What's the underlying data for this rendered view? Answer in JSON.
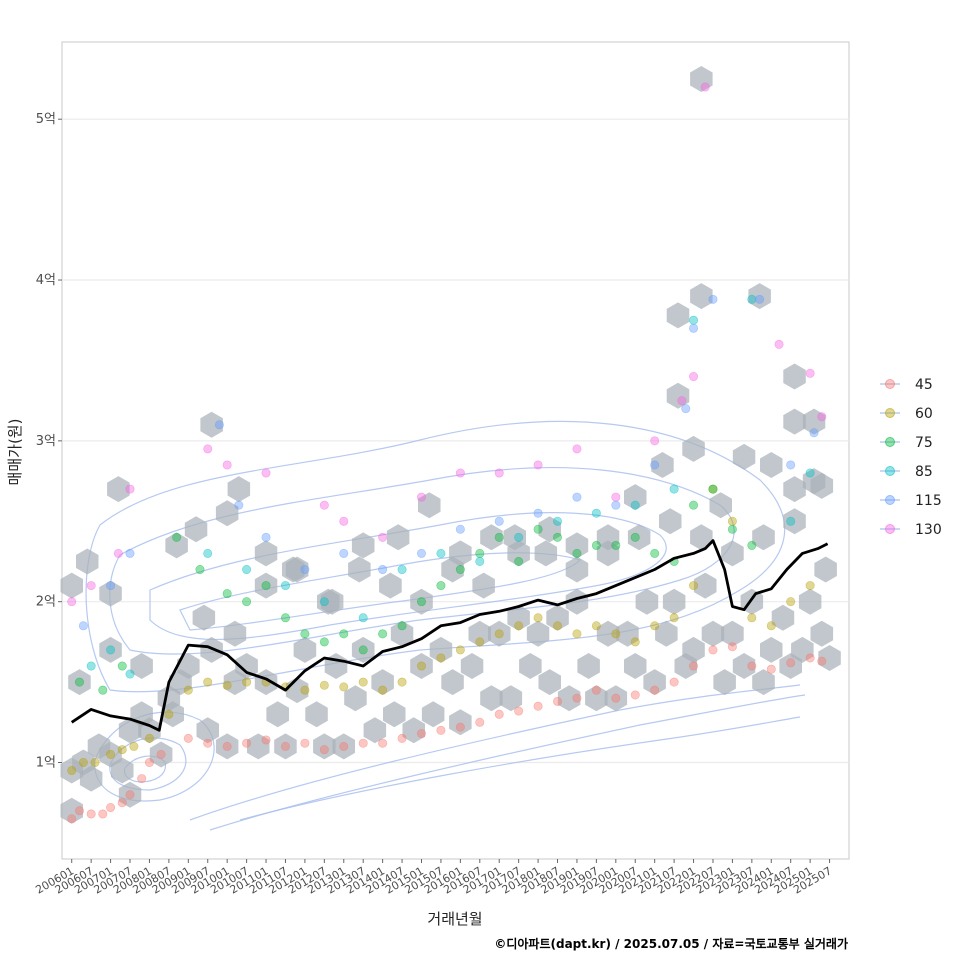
{
  "chart_data": {
    "type": "scatter",
    "xlabel": "거래년월",
    "ylabel": "매매가(원)",
    "caption": "©디아파트(dapt.kr) / 2025.07.05 / 자료=국토교통부 실거래가",
    "x_ticks": [
      "200601",
      "200607",
      "200701",
      "200707",
      "200801",
      "200807",
      "200901",
      "200907",
      "201001",
      "201007",
      "201101",
      "201107",
      "201201",
      "201207",
      "201301",
      "201307",
      "201401",
      "201407",
      "201501",
      "201507",
      "201601",
      "201607",
      "201701",
      "201707",
      "201801",
      "201807",
      "201901",
      "201907",
      "202001",
      "202007",
      "202101",
      "202107",
      "202201",
      "202207",
      "202301",
      "202307",
      "202401",
      "202407",
      "202501",
      "202507"
    ],
    "y_ticks": [
      {
        "value": 1,
        "label": "1억"
      },
      {
        "value": 2,
        "label": "2억"
      },
      {
        "value": 3,
        "label": "3억"
      },
      {
        "value": 4,
        "label": "4억"
      },
      {
        "value": 5,
        "label": "5억"
      }
    ],
    "xlim": [
      2005.75,
      2026.0
    ],
    "ylim": [
      0.4,
      5.48
    ],
    "grid": true,
    "legend_position": "right",
    "legend": [
      {
        "name": "45",
        "color": "#F8766D"
      },
      {
        "name": "60",
        "color": "#B79F00"
      },
      {
        "name": "75",
        "color": "#00BA38"
      },
      {
        "name": "85",
        "color": "#00BFC4"
      },
      {
        "name": "115",
        "color": "#619CFF"
      },
      {
        "name": "130",
        "color": "#F564E3"
      }
    ],
    "trend_line": {
      "color": "#000000",
      "x": [
        2006.0,
        2006.5,
        2007.0,
        2007.5,
        2008.0,
        2008.25,
        2008.5,
        2009.0,
        2009.5,
        2010.0,
        2010.5,
        2011.0,
        2011.5,
        2012.0,
        2012.5,
        2013.0,
        2013.5,
        2014.0,
        2014.5,
        2015.0,
        2015.5,
        2016.0,
        2016.5,
        2017.0,
        2017.5,
        2018.0,
        2018.5,
        2019.0,
        2019.5,
        2020.0,
        2020.5,
        2021.0,
        2021.5,
        2022.0,
        2022.3,
        2022.5,
        2022.8,
        2023.0,
        2023.3,
        2023.6,
        2024.0,
        2024.4,
        2024.8,
        2025.2,
        2025.45
      ],
      "y": [
        1.25,
        1.33,
        1.29,
        1.27,
        1.23,
        1.2,
        1.5,
        1.73,
        1.72,
        1.67,
        1.56,
        1.52,
        1.45,
        1.57,
        1.65,
        1.63,
        1.6,
        1.69,
        1.72,
        1.77,
        1.85,
        1.87,
        1.92,
        1.94,
        1.97,
        2.01,
        1.98,
        2.02,
        2.05,
        2.1,
        2.15,
        2.2,
        2.27,
        2.3,
        2.33,
        2.38,
        2.2,
        1.97,
        1.95,
        2.05,
        2.08,
        2.2,
        2.3,
        2.33,
        2.36
      ]
    },
    "series": [
      {
        "name": "45",
        "x": [
          2006.0,
          2006.2,
          2006.5,
          2006.8,
          2007.0,
          2007.3,
          2007.5,
          2007.8,
          2008.0,
          2008.3,
          2009.0,
          2009.5,
          2010.0,
          2010.5,
          2011.0,
          2011.5,
          2012.0,
          2012.5,
          2013.0,
          2013.5,
          2014.0,
          2014.5,
          2015.0,
          2015.5,
          2016.0,
          2016.5,
          2017.0,
          2017.5,
          2018.0,
          2018.5,
          2019.0,
          2019.5,
          2020.0,
          2020.5,
          2021.0,
          2021.5,
          2022.0,
          2022.5,
          2023.0,
          2023.5,
          2024.0,
          2024.5,
          2025.0,
          2025.3
        ],
        "y": [
          0.65,
          0.7,
          0.68,
          0.68,
          0.72,
          0.75,
          0.8,
          0.9,
          1.0,
          1.05,
          1.15,
          1.12,
          1.1,
          1.12,
          1.14,
          1.1,
          1.12,
          1.08,
          1.1,
          1.12,
          1.12,
          1.15,
          1.18,
          1.2,
          1.22,
          1.25,
          1.3,
          1.32,
          1.35,
          1.38,
          1.4,
          1.45,
          1.4,
          1.42,
          1.45,
          1.5,
          1.6,
          1.7,
          1.72,
          1.6,
          1.58,
          1.62,
          1.65,
          1.63
        ]
      },
      {
        "name": "60",
        "x": [
          2006.0,
          2006.3,
          2006.6,
          2007.0,
          2007.3,
          2007.6,
          2008.0,
          2008.5,
          2009.0,
          2009.5,
          2010.0,
          2010.5,
          2011.0,
          2011.5,
          2012.0,
          2012.5,
          2013.0,
          2013.5,
          2014.0,
          2014.5,
          2015.0,
          2015.5,
          2016.0,
          2016.5,
          2017.0,
          2017.5,
          2018.0,
          2018.5,
          2019.0,
          2019.5,
          2020.0,
          2020.5,
          2021.0,
          2021.5,
          2022.0,
          2022.5,
          2023.0,
          2023.5,
          2024.0,
          2024.5,
          2025.0
        ],
        "y": [
          0.95,
          1.0,
          1.0,
          1.05,
          1.08,
          1.1,
          1.15,
          1.3,
          1.45,
          1.5,
          1.48,
          1.5,
          1.5,
          1.47,
          1.45,
          1.48,
          1.47,
          1.5,
          1.45,
          1.5,
          1.6,
          1.65,
          1.7,
          1.75,
          1.8,
          1.85,
          1.9,
          1.85,
          1.8,
          1.85,
          1.8,
          1.75,
          1.85,
          1.9,
          2.1,
          2.7,
          2.5,
          1.9,
          1.85,
          2.0,
          2.1
        ]
      },
      {
        "name": "75",
        "x": [
          2006.2,
          2006.8,
          2007.3,
          2008.7,
          2009.3,
          2010.0,
          2010.5,
          2011.0,
          2011.5,
          2012.0,
          2012.5,
          2013.0,
          2013.5,
          2014.0,
          2014.5,
          2015.0,
          2015.5,
          2016.0,
          2016.5,
          2017.0,
          2017.5,
          2018.0,
          2018.5,
          2019.0,
          2019.5,
          2020.0,
          2020.5,
          2021.0,
          2021.5,
          2022.0,
          2022.5,
          2023.0,
          2023.5
        ],
        "y": [
          1.5,
          1.45,
          1.6,
          2.4,
          2.2,
          2.05,
          2.0,
          2.1,
          1.9,
          1.8,
          1.75,
          1.8,
          1.7,
          1.8,
          1.85,
          2.0,
          2.1,
          2.2,
          2.3,
          2.4,
          2.25,
          2.45,
          2.4,
          2.3,
          2.35,
          2.35,
          2.4,
          2.3,
          2.25,
          2.6,
          2.7,
          2.45,
          2.35
        ]
      },
      {
        "name": "85",
        "x": [
          2006.5,
          2007.0,
          2007.5,
          2009.5,
          2010.5,
          2011.5,
          2012.5,
          2013.5,
          2014.5,
          2015.5,
          2016.5,
          2017.5,
          2018.5,
          2019.5,
          2020.5,
          2021.5,
          2022.0,
          2023.5,
          2024.5,
          2025.0
        ],
        "y": [
          1.6,
          1.7,
          1.55,
          2.3,
          2.2,
          2.1,
          2.0,
          1.9,
          2.2,
          2.3,
          2.25,
          2.4,
          2.5,
          2.55,
          2.6,
          2.7,
          3.75,
          3.88,
          2.5,
          2.8
        ]
      },
      {
        "name": "115",
        "x": [
          2006.3,
          2007.0,
          2007.5,
          2009.8,
          2010.3,
          2011.0,
          2012.0,
          2013.0,
          2014.0,
          2015.0,
          2016.0,
          2017.0,
          2018.0,
          2019.0,
          2020.0,
          2021.0,
          2021.8,
          2022.0,
          2022.5,
          2023.7,
          2024.5,
          2025.1
        ],
        "y": [
          1.85,
          2.1,
          2.3,
          3.1,
          2.6,
          2.4,
          2.2,
          2.3,
          2.2,
          2.3,
          2.45,
          2.5,
          2.55,
          2.65,
          2.6,
          2.85,
          3.2,
          3.7,
          3.88,
          3.88,
          2.85,
          3.05
        ]
      },
      {
        "name": "130",
        "x": [
          2006.0,
          2006.5,
          2007.2,
          2007.5,
          2009.5,
          2010.0,
          2011.0,
          2012.5,
          2013.0,
          2014.0,
          2015.0,
          2016.0,
          2017.0,
          2018.0,
          2019.0,
          2020.0,
          2021.0,
          2021.7,
          2022.0,
          2022.3,
          2024.2,
          2025.0,
          2025.3
        ],
        "y": [
          2.0,
          2.1,
          2.3,
          2.7,
          2.95,
          2.85,
          2.8,
          2.6,
          2.5,
          2.4,
          2.65,
          2.8,
          2.8,
          2.85,
          2.95,
          2.65,
          3.0,
          3.25,
          3.4,
          5.2,
          3.6,
          3.42,
          3.15
        ]
      }
    ],
    "hex_density": {
      "color": "#A9B2B8",
      "x": [
        2006.0,
        2006.0,
        2006.3,
        2006.5,
        2006.7,
        2007.0,
        2007.3,
        2007.5,
        2007.5,
        2007.8,
        2008.0,
        2008.3,
        2008.5,
        2008.8,
        2009.0,
        2009.5,
        2009.6,
        2010.0,
        2010.2,
        2010.5,
        2010.8,
        2011.0,
        2011.3,
        2011.5,
        2011.8,
        2012.0,
        2012.3,
        2012.5,
        2012.8,
        2013.0,
        2013.3,
        2013.5,
        2013.8,
        2014.0,
        2014.3,
        2014.5,
        2014.8,
        2015.0,
        2015.3,
        2015.5,
        2015.8,
        2016.0,
        2016.3,
        2016.5,
        2016.8,
        2017.0,
        2017.3,
        2017.5,
        2017.8,
        2018.0,
        2018.3,
        2018.5,
        2018.8,
        2019.0,
        2019.3,
        2019.5,
        2019.8,
        2020.0,
        2020.3,
        2020.5,
        2020.8,
        2021.0,
        2021.3,
        2021.5,
        2021.8,
        2022.0,
        2022.3,
        2022.5,
        2022.8,
        2023.0,
        2023.3,
        2023.5,
        2023.8,
        2024.0,
        2024.3,
        2024.5,
        2024.8,
        2025.0,
        2025.3,
        2025.5,
        2021.6,
        2021.6,
        2022.2,
        2022.2,
        2023.7,
        2024.6,
        2024.6,
        2025.1,
        2025.3,
        2006.0,
        2006.4,
        2007.0,
        2007.2,
        2008.7,
        2009.2,
        2009.6,
        2010.0,
        2010.3,
        2011.0,
        2011.7,
        2012.7,
        2013.5,
        2014.4,
        2015.2,
        2016.0,
        2016.8,
        2017.5,
        2018.3,
        2019.0,
        2019.8,
        2020.5,
        2021.2,
        2022.0,
        2022.7,
        2023.3,
        2024.0,
        2024.6,
        2025.1,
        2006.2,
        2007.0,
        2007.8,
        2008.6,
        2009.4,
        2010.2,
        2011.0,
        2011.8,
        2012.6,
        2013.4,
        2014.2,
        2015.0,
        2015.8,
        2016.6,
        2017.4,
        2018.2,
        2019.0,
        2019.8,
        2020.6,
        2021.4,
        2022.2,
        2023.0,
        2023.8,
        2024.6,
        2025.4
      ],
      "y": [
        0.7,
        0.95,
        1.0,
        0.9,
        1.1,
        1.05,
        0.95,
        1.2,
        0.8,
        1.3,
        1.2,
        1.05,
        1.4,
        1.5,
        1.6,
        1.2,
        1.7,
        1.1,
        1.5,
        1.6,
        1.1,
        1.5,
        1.3,
        1.1,
        1.45,
        1.7,
        1.3,
        1.1,
        1.6,
        1.1,
        1.4,
        1.7,
        1.2,
        1.5,
        1.3,
        1.8,
        1.2,
        1.6,
        1.3,
        1.7,
        1.5,
        1.25,
        1.6,
        1.8,
        1.4,
        1.8,
        1.4,
        1.9,
        1.6,
        1.8,
        1.5,
        1.9,
        1.4,
        2.0,
        1.6,
        1.4,
        1.8,
        1.4,
        1.8,
        1.6,
        2.0,
        1.5,
        1.8,
        2.0,
        1.6,
        1.7,
        2.1,
        1.8,
        1.5,
        1.8,
        1.6,
        2.0,
        1.5,
        1.7,
        1.9,
        1.6,
        1.7,
        2.0,
        1.8,
        1.65,
        3.78,
        3.28,
        3.9,
        5.25,
        3.9,
        3.4,
        3.12,
        3.12,
        2.72,
        2.1,
        2.25,
        2.05,
        2.7,
        2.35,
        2.45,
        3.1,
        2.55,
        2.7,
        2.3,
        2.2,
        2.0,
        2.35,
        2.4,
        2.6,
        2.3,
        2.4,
        2.3,
        2.45,
        2.35,
        2.4,
        2.65,
        2.85,
        2.95,
        2.6,
        2.9,
        2.85,
        2.7,
        2.75,
        1.5,
        1.7,
        1.6,
        1.3,
        1.9,
        1.8,
        2.1,
        2.2,
        2.0,
        2.2,
        2.1,
        2.0,
        2.2,
        2.1,
        2.4,
        2.3,
        2.2,
        2.3,
        2.4,
        2.5,
        2.4,
        2.3,
        2.4,
        2.5,
        2.2
      ]
    }
  }
}
